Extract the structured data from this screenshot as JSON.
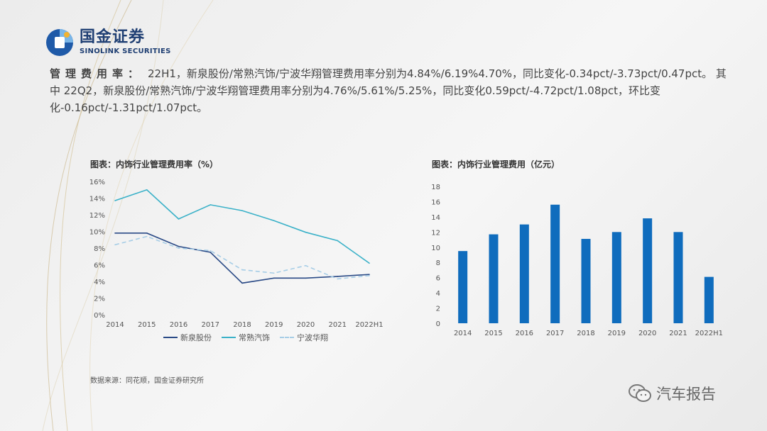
{
  "brand": {
    "name_cn": "国金证券",
    "name_en": "SINOLINK SECURITIES"
  },
  "summary": {
    "label": "管理费用率：",
    "text": "22H1，新泉股份/常熟汽饰/宁波华翔管理费用率分别为4.84%/6.19%4.70%，同比变化-0.34pct/-3.73pct/0.47pct。 其中 22Q2，新泉股份/常熟汽饰/宁波华翔管理费用率分别为4.76%/5.61%/5.25%，同比变化0.59pct/-4.72pct/1.08pct，环比变化-0.16pct/-1.31pct/1.07pct。"
  },
  "source": "数据来源：同花顺，国金证券研究所",
  "watermark": "汽车报告",
  "colors": {
    "navy": "#2a4a86",
    "teal": "#3ab1c8",
    "lightblue": "#a6cde6",
    "bar": "#0f6cbd"
  },
  "chart_data": [
    {
      "type": "line",
      "title": "图表：内饰行业管理费用率（%）",
      "categories": [
        "2014",
        "2015",
        "2016",
        "2017",
        "2018",
        "2019",
        "2020",
        "2021",
        "2022H1"
      ],
      "ylim": [
        0,
        16
      ],
      "yticks": [
        "0%",
        "2%",
        "4%",
        "6%",
        "8%",
        "10%",
        "12%",
        "14%",
        "16%"
      ],
      "grid": false,
      "legend": "bottom",
      "series": [
        {
          "name": "新泉股份",
          "values": [
            9.8,
            9.8,
            8.2,
            7.5,
            3.8,
            4.4,
            4.4,
            4.6,
            4.84
          ],
          "color": "#2a4a86",
          "dash": false
        },
        {
          "name": "常熟汽饰",
          "values": [
            13.7,
            15.0,
            11.5,
            13.2,
            12.5,
            11.3,
            9.9,
            8.9,
            6.19
          ],
          "color": "#3ab1c8",
          "dash": false
        },
        {
          "name": "宁波华翔",
          "values": [
            8.4,
            9.4,
            8.0,
            7.7,
            5.4,
            5.0,
            5.9,
            4.3,
            4.7
          ],
          "color": "#a6cde6",
          "dash": true
        }
      ]
    },
    {
      "type": "bar",
      "title": "图表：内饰行业管理费用（亿元）",
      "categories": [
        "2014",
        "2015",
        "2016",
        "2017",
        "2018",
        "2019",
        "2020",
        "2021",
        "2022H1"
      ],
      "values": [
        9.5,
        11.7,
        13.0,
        15.6,
        11.1,
        12.0,
        13.8,
        12.0,
        6.1
      ],
      "ylim": [
        0,
        18
      ],
      "yticks": [
        "0",
        "2",
        "4",
        "6",
        "8",
        "10",
        "12",
        "14",
        "16",
        "18"
      ],
      "grid": false,
      "color": "#0f6cbd"
    }
  ]
}
